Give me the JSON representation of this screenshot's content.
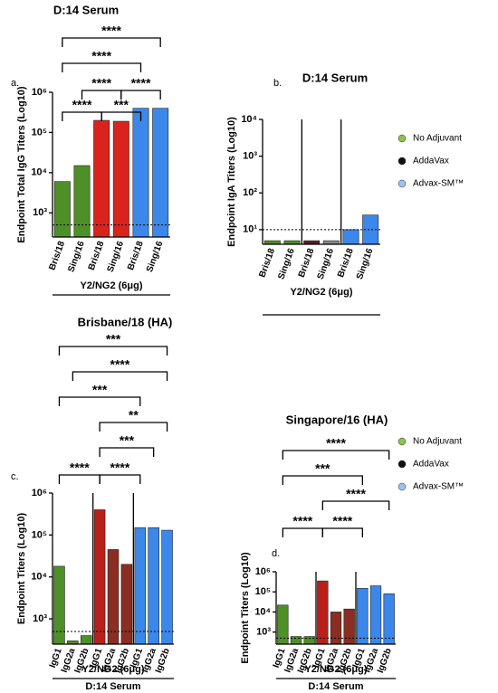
{
  "chart_data": [
    {
      "type": "bar",
      "panel_label": "a.",
      "title": "D:14 Serum",
      "y_label": "Endpoint  Total IgG Titers (Log10)",
      "x_label": "Y2/NG2 (6μg)",
      "categories": [
        "Bris/18",
        "Sing/16",
        "Bris/18",
        "Sing/16",
        "Bris/18",
        "Sing/16"
      ],
      "values": [
        6000,
        15000,
        200000,
        190000,
        400000,
        400000
      ],
      "colors": [
        "#4f8f27",
        "#4f8f27",
        "#d8241c",
        "#d8241c",
        "#3b87ea",
        "#3b87ea"
      ],
      "log_scale": true,
      "ylim": [
        250,
        1000000
      ],
      "yticks": [
        {
          "value": 1000,
          "label": "10³"
        },
        {
          "value": 10000,
          "label": "10⁴"
        },
        {
          "value": 100000,
          "label": "10⁵"
        },
        {
          "value": 1000000,
          "label": "10⁶"
        }
      ],
      "reference_line": 500,
      "annotations": [
        "****",
        "****",
        "****",
        "****",
        "***",
        "****"
      ]
    },
    {
      "type": "bar",
      "panel_label": "b.",
      "title": "D:14 Serum",
      "y_label": "Endpoint IgA Titers (Log10)",
      "x_label": "Y2/NG2 (6μg)",
      "categories": [
        "Bris/18",
        "Sing/16",
        "Bris/18",
        "Sing/16",
        "Bris/18",
        "Sing/16"
      ],
      "values": [
        5,
        5,
        5,
        5,
        10,
        25
      ],
      "colors": [
        "#4f8f27",
        "#4f8f27",
        "#5a2020",
        "#888888",
        "#3b87ea",
        "#3b87ea"
      ],
      "log_scale": true,
      "ylim": [
        4,
        10000
      ],
      "yticks": [
        {
          "value": 10,
          "label": "10¹"
        },
        {
          "value": 100,
          "label": "10²"
        },
        {
          "value": 1000,
          "label": "10³"
        },
        {
          "value": 10000,
          "label": "10⁴"
        }
      ],
      "reference_line": 10,
      "legend": [
        {
          "name": "No Adjuvant",
          "color": "#8bc34a"
        },
        {
          "name": "AddaVax",
          "color": "#111111"
        },
        {
          "name": "Advax-SM™",
          "color": "#9cc3ee"
        }
      ]
    },
    {
      "type": "bar",
      "panel_label": "c.",
      "title": "Brisbane/18 (HA)",
      "x_label": "Y2/NG2 (6μg)",
      "footer": "D:14 Serum",
      "y_label": "Endpoint Titers (Log10)",
      "categories": [
        "IgG1",
        "IgG2a",
        "IgG2b",
        "IgG1",
        "IgG2a",
        "IgG2b",
        "IgG1",
        "IgG2a",
        "IgG2b"
      ],
      "values": [
        18000,
        300,
        400,
        400000,
        45000,
        20000,
        150000,
        150000,
        130000
      ],
      "colors": [
        "#4f8f27",
        "#4f8f27",
        "#4f8f27",
        "#b8201a",
        "#8a2d22",
        "#8a2d22",
        "#3b87ea",
        "#3b87ea",
        "#3b87ea"
      ],
      "log_scale": true,
      "ylim": [
        250,
        1000000
      ],
      "yticks": [
        {
          "value": 1000,
          "label": "10³"
        },
        {
          "value": 10000,
          "label": "10⁴"
        },
        {
          "value": 100000,
          "label": "10⁵"
        },
        {
          "value": 1000000,
          "label": "10⁶"
        }
      ],
      "reference_line": 500,
      "annotations": [
        "***",
        "****",
        "***",
        "**",
        "***",
        "****",
        "****"
      ]
    },
    {
      "type": "bar",
      "panel_label": "d.",
      "title": "Singapore/16 (HA)",
      "x_label": "Y2/NG2 (6μg)",
      "footer": "D:14 Serum",
      "y_label": "Endpoint Titers (Log10)",
      "categories": [
        "IgG1",
        "IgG2a",
        "IgG2b",
        "IgG1",
        "IgG2a",
        "IgG2b",
        "IgG1",
        "IgG2a",
        "IgG2b"
      ],
      "values": [
        22000,
        600,
        600,
        350000,
        10000,
        14000,
        150000,
        200000,
        80000
      ],
      "colors": [
        "#4f8f27",
        "#4f8f27",
        "#4f8f27",
        "#b8201a",
        "#8a2d22",
        "#8a2d22",
        "#3b87ea",
        "#3b87ea",
        "#3b87ea"
      ],
      "log_scale": true,
      "ylim": [
        250,
        1000000
      ],
      "yticks": [
        {
          "value": 1000,
          "label": "10³"
        },
        {
          "value": 10000,
          "label": "10⁴"
        },
        {
          "value": 100000,
          "label": "10⁵"
        },
        {
          "value": 1000000,
          "label": "10⁶"
        }
      ],
      "reference_line": 500,
      "annotations": [
        "****",
        "***",
        "****",
        "****",
        "****"
      ],
      "legend": [
        {
          "name": "No Adjuvant",
          "color": "#8bc34a"
        },
        {
          "name": "AddaVax",
          "color": "#111111"
        },
        {
          "name": "Advax-SM™",
          "color": "#9cc3ee"
        }
      ]
    }
  ]
}
